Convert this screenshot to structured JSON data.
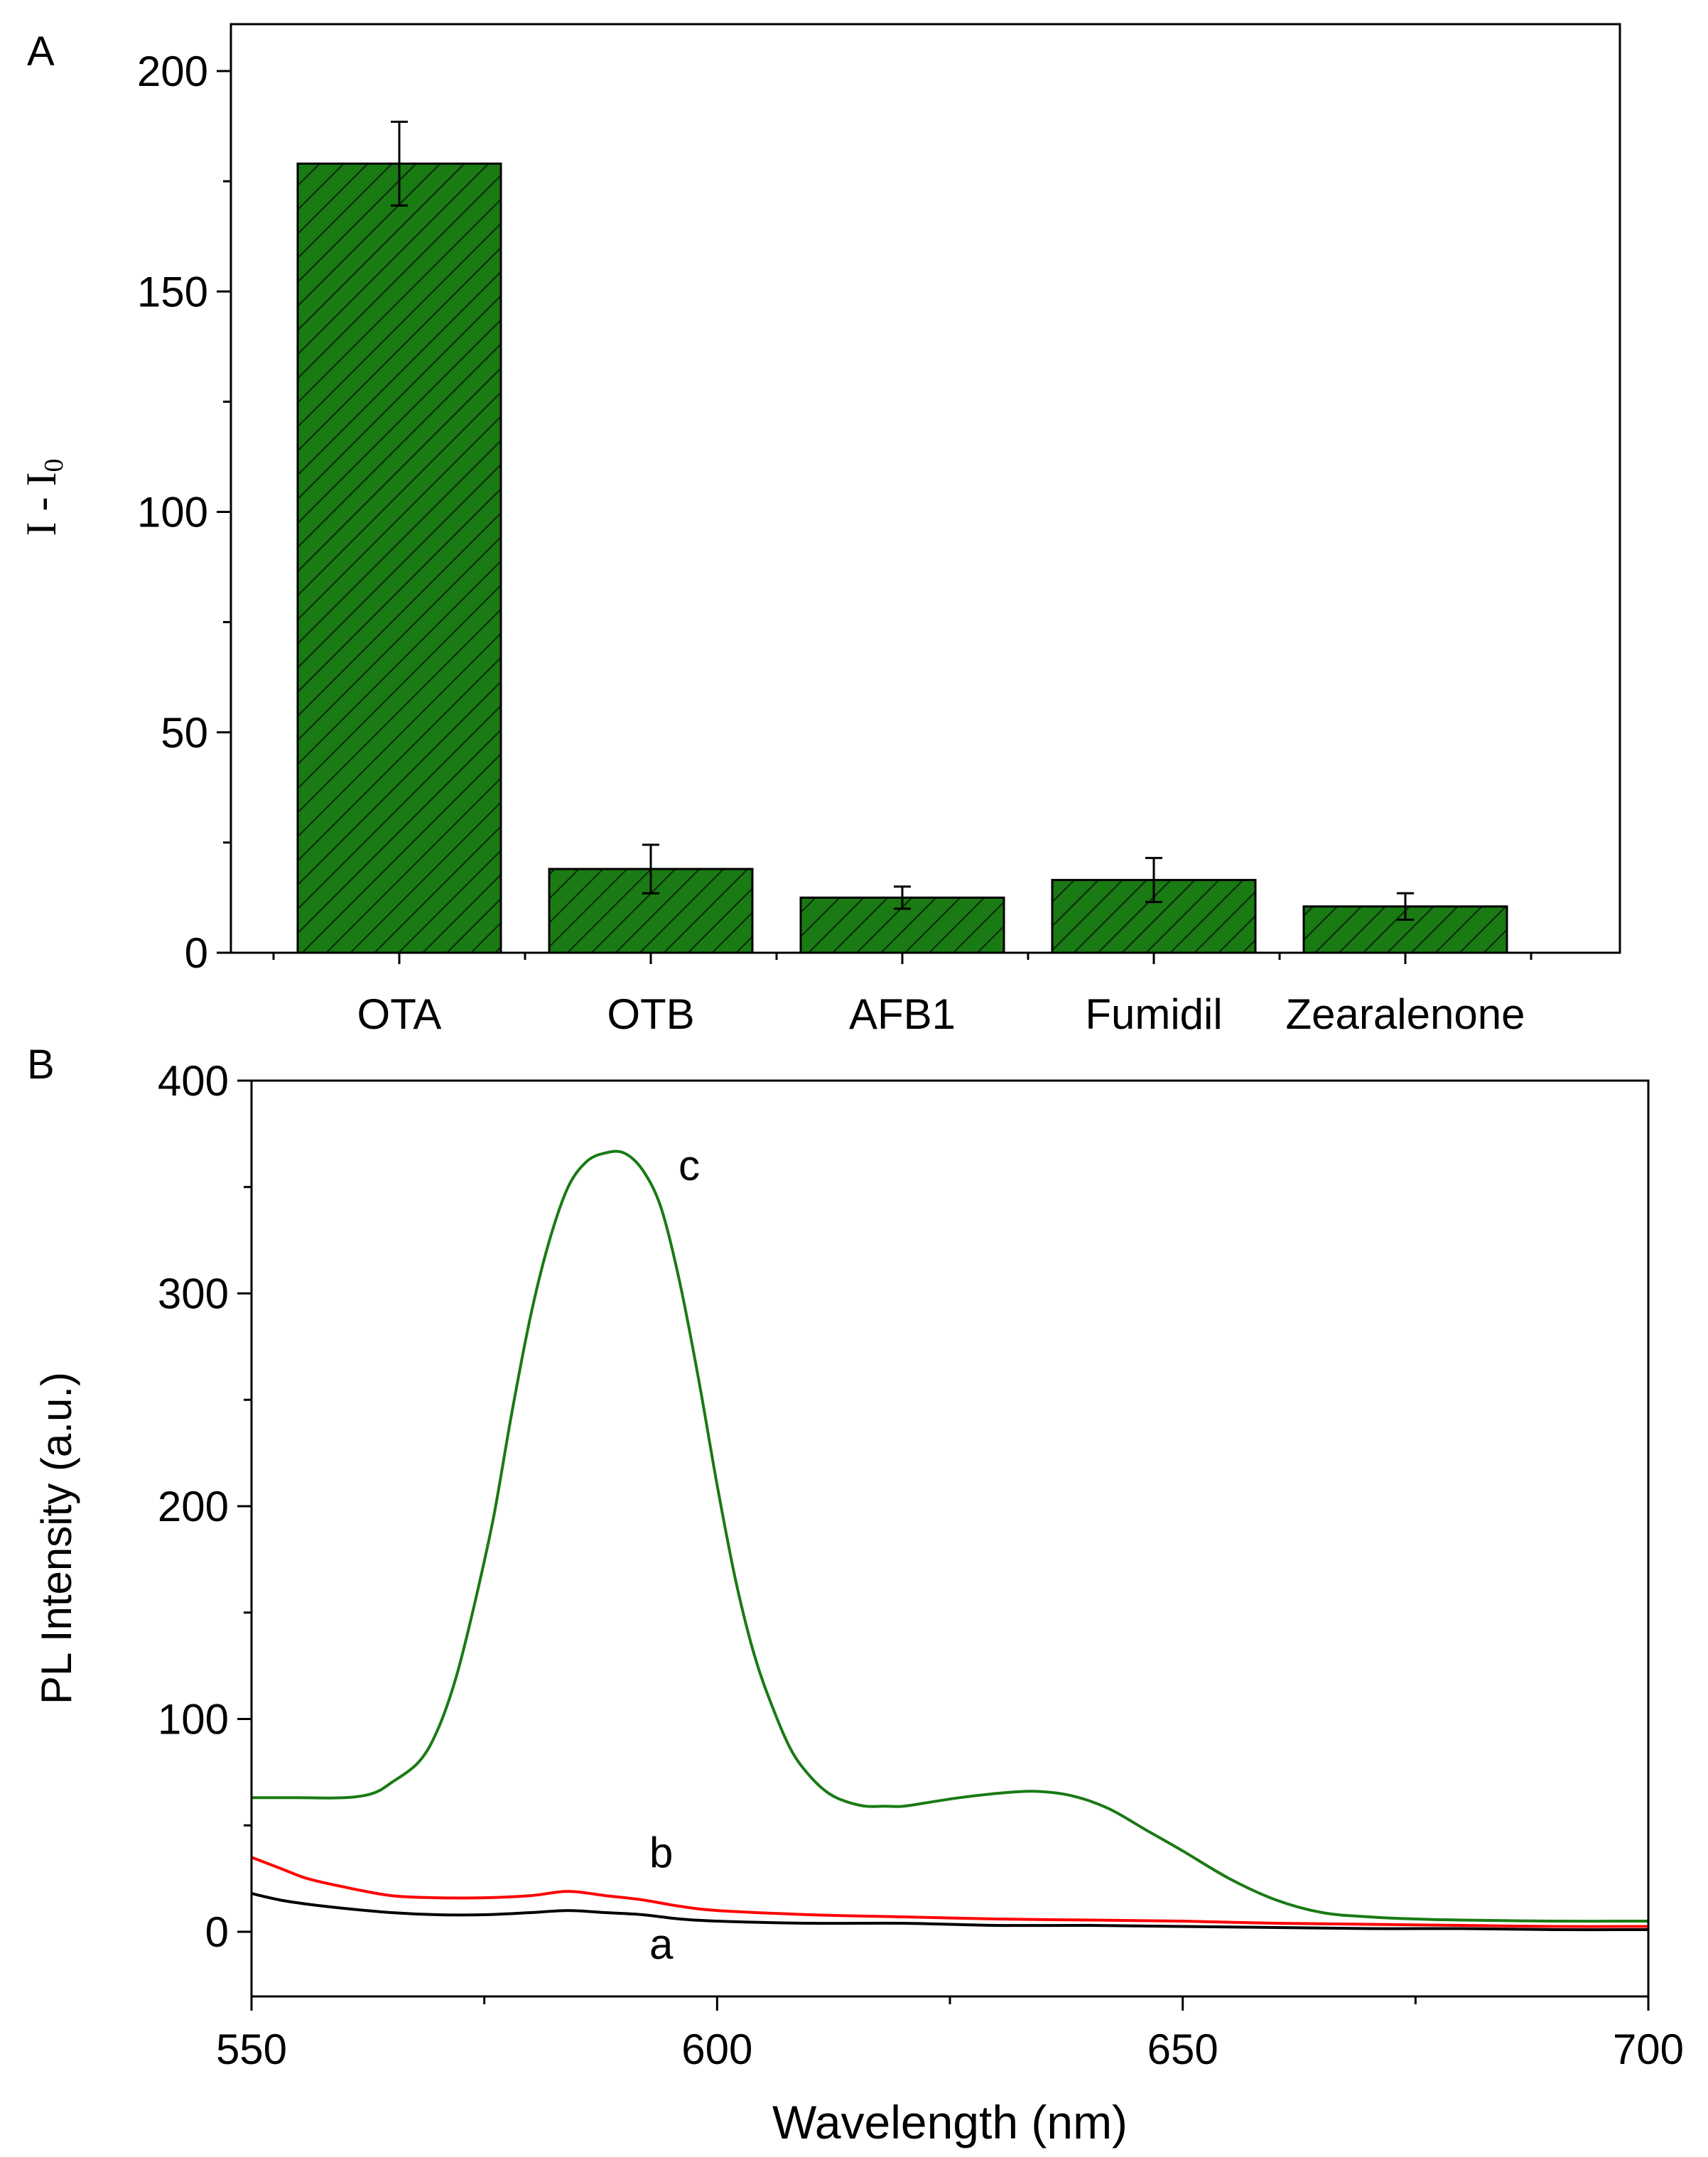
{
  "colors": {
    "bar_fill": "#1a7a14",
    "bar_hatch": "#0a2a08",
    "curve_a": "#000000",
    "curve_b": "#ff0000",
    "curve_c": "#1a7a14"
  },
  "chart_data": [
    {
      "panel_label": "A",
      "type": "bar",
      "categories": [
        "OTA",
        "OTB",
        "AFB1",
        "Fumidil",
        "Zearalenone"
      ],
      "values": [
        179,
        19,
        12.5,
        16.5,
        10.5
      ],
      "errors": [
        9.5,
        5.5,
        2.5,
        5,
        3
      ],
      "ylabel": "I - I",
      "ylabel_sub": "0",
      "ylim": [
        0,
        210
      ],
      "yticks": [
        0,
        50,
        100,
        150,
        200
      ],
      "pattern": "diagonal hatch",
      "grid": false,
      "legend": "none"
    },
    {
      "panel_label": "B",
      "type": "line",
      "xlabel": "Wavelength (nm)",
      "ylabel": "PL Intensity (a.u.)",
      "xlim": [
        550,
        700
      ],
      "ylim": [
        -20,
        400
      ],
      "xticks": [
        550,
        600,
        650,
        700
      ],
      "yticks": [
        0,
        100,
        200,
        300,
        400
      ],
      "grid": false,
      "legend": "none",
      "series": [
        {
          "label": "a",
          "label_at": [
            594,
            -6
          ],
          "x": [
            550,
            553,
            556,
            560,
            565,
            570,
            575,
            580,
            584,
            588,
            592,
            596,
            600,
            610,
            620,
            630,
            640,
            650,
            660,
            670,
            680,
            690,
            700
          ],
          "y": [
            18,
            15,
            13,
            11,
            9,
            8,
            8,
            9,
            10,
            9,
            8,
            6,
            5,
            4,
            4,
            3,
            3,
            2.5,
            2,
            1.5,
            1.5,
            1,
            1
          ]
        },
        {
          "label": "b",
          "label_at": [
            594,
            37
          ],
          "x": [
            550,
            553,
            556,
            560,
            565,
            570,
            575,
            580,
            584,
            588,
            592,
            596,
            600,
            610,
            620,
            630,
            640,
            650,
            660,
            670,
            680,
            690,
            700
          ],
          "y": [
            35,
            30,
            25,
            21,
            17,
            16,
            16,
            17,
            19,
            17,
            15,
            12,
            10,
            8,
            7,
            6,
            5.5,
            5,
            4,
            3.5,
            3,
            2.5,
            2.5
          ]
        },
        {
          "label": "c",
          "label_at": [
            597,
            360
          ],
          "x": [
            550,
            555,
            560,
            563,
            565,
            568,
            570,
            572,
            574,
            576,
            578,
            580,
            582,
            584,
            586,
            588,
            590,
            592,
            594,
            596,
            598,
            600,
            602,
            604,
            606,
            608,
            610,
            612,
            614,
            616,
            618,
            620,
            623,
            626,
            630,
            634,
            638,
            642,
            646,
            650,
            655,
            660,
            665,
            670,
            675,
            680,
            690,
            700
          ],
          "y": [
            63,
            63,
            63,
            65,
            70,
            80,
            95,
            120,
            155,
            195,
            245,
            290,
            325,
            350,
            362,
            366,
            366,
            358,
            340,
            305,
            260,
            210,
            165,
            130,
            105,
            85,
            73,
            65,
            61,
            59,
            59,
            59,
            61,
            63,
            65,
            66,
            64,
            58,
            48,
            38,
            25,
            15,
            9,
            7,
            6,
            5.5,
            5,
            5
          ]
        }
      ]
    }
  ]
}
